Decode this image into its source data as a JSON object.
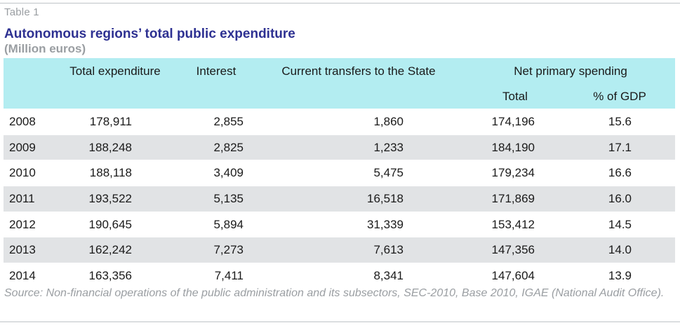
{
  "table_label": "Table 1",
  "title": "Autonomous regions’ total public expenditure",
  "subtitle": "(Million euros)",
  "headers": {
    "total_expenditure": "Total expenditure",
    "interest": "Interest",
    "current_transfers": "Current transfers to the State",
    "net_primary_spending": "Net primary spending",
    "nps_total": "Total",
    "nps_pct_gdp": "% of GDP"
  },
  "rows": [
    {
      "year": "2008",
      "total_expenditure": "178,911",
      "interest": "2,855",
      "current_transfers": "1,860",
      "nps_total": "174,196",
      "nps_pct_gdp": "15.6"
    },
    {
      "year": "2009",
      "total_expenditure": "188,248",
      "interest": "2,825",
      "current_transfers": "1,233",
      "nps_total": "184,190",
      "nps_pct_gdp": "17.1"
    },
    {
      "year": "2010",
      "total_expenditure": "188,118",
      "interest": "3,409",
      "current_transfers": "5,475",
      "nps_total": "179,234",
      "nps_pct_gdp": "16.6"
    },
    {
      "year": "2011",
      "total_expenditure": "193,522",
      "interest": "5,135",
      "current_transfers": "16,518",
      "nps_total": "171,869",
      "nps_pct_gdp": "16.0"
    },
    {
      "year": "2012",
      "total_expenditure": "190,645",
      "interest": "5,894",
      "current_transfers": "31,339",
      "nps_total": "153,412",
      "nps_pct_gdp": "14.5"
    },
    {
      "year": "2013",
      "total_expenditure": "162,242",
      "interest": "7,273",
      "current_transfers": "7,613",
      "nps_total": "147,356",
      "nps_pct_gdp": "14.0"
    },
    {
      "year": "2014",
      "total_expenditure": "163,356",
      "interest": "7,411",
      "current_transfers": "8,341",
      "nps_total": "147,604",
      "nps_pct_gdp": "13.9"
    }
  ],
  "source": "Source: Non-financial operations of the public administration and its subsectors, SEC-2010, Base 2010, IGAE (National Audit Office).",
  "colors": {
    "title": "#2e3192",
    "header_background": "#b3edf1",
    "shaded_row": "#e1e3e5",
    "muted_text": "#9a9ea2"
  }
}
